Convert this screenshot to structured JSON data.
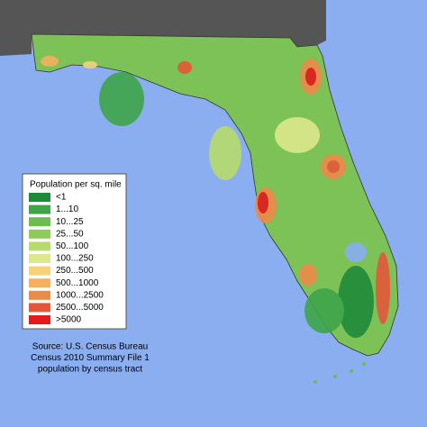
{
  "legend": {
    "title": "Population per sq. mile",
    "items": [
      {
        "label": "<1",
        "color": "#1f8a3b"
      },
      {
        "label": "1...10",
        "color": "#3ea649"
      },
      {
        "label": "10...25",
        "color": "#6cbc51"
      },
      {
        "label": "25...50",
        "color": "#8ecb5a"
      },
      {
        "label": "50...100",
        "color": "#b7dc6c"
      },
      {
        "label": "100...250",
        "color": "#dde88c"
      },
      {
        "label": "250...500",
        "color": "#f6d37b"
      },
      {
        "label": "500...1000",
        "color": "#f4b05c"
      },
      {
        "label": "1000...2500",
        "color": "#ec8a4a"
      },
      {
        "label": "2500...5000",
        "color": "#e6573a"
      },
      {
        "label": ">5000",
        "color": "#e3191c"
      }
    ]
  },
  "source": [
    "Source: U.S. Census Bureau",
    "Census 2010 Summary File 1",
    "population by census tract"
  ]
}
